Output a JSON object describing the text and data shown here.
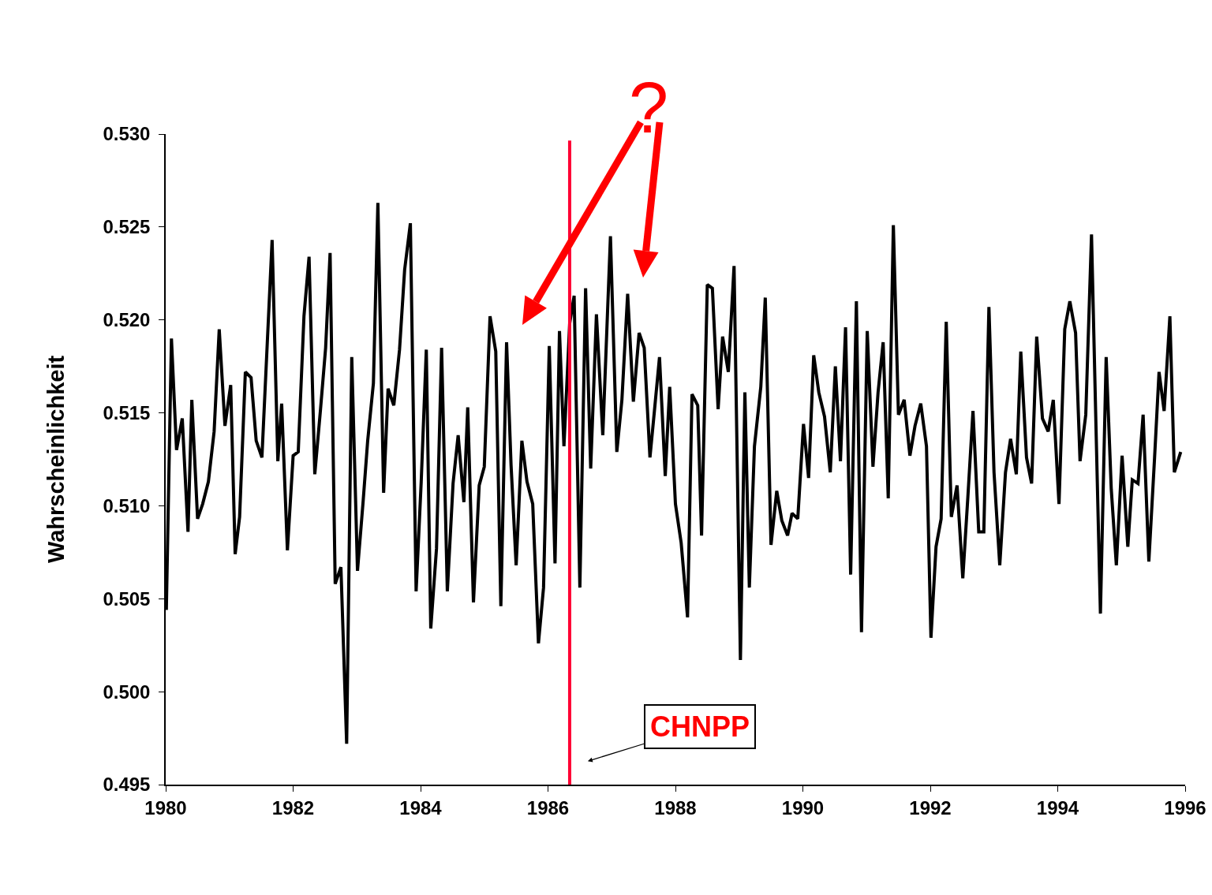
{
  "chart_data": {
    "type": "line",
    "ylabel": "Wahrscheinlichkeit",
    "grid": false,
    "marker": "none",
    "line_style": "solid",
    "xlim": [
      1980,
      1996
    ],
    "xticks": [
      1980,
      1982,
      1984,
      1986,
      1988,
      1990,
      1992,
      1994,
      1996
    ],
    "ylim": [
      0.495,
      0.53
    ],
    "yticks": [
      {
        "value": 0.495,
        "label": "0.495"
      },
      {
        "value": 0.5,
        "label": "0.500"
      },
      {
        "value": 0.505,
        "label": "0.505"
      },
      {
        "value": 0.51,
        "label": "0.510"
      },
      {
        "value": 0.515,
        "label": "0.515"
      },
      {
        "value": 0.52,
        "label": "0.520"
      },
      {
        "value": 0.525,
        "label": "0.525"
      },
      {
        "value": 0.53,
        "label": "0.530"
      }
    ],
    "annotations": [
      "?"
    ],
    "ref_lines": [
      {
        "axis": "x",
        "value": 1986.34,
        "label": "CHNPP",
        "color": "#ff0033"
      }
    ],
    "series": [
      {
        "color": "#000000",
        "x": [
          1980.01,
          1980.09,
          1980.17,
          1980.26,
          1980.35,
          1980.41,
          1980.5,
          1980.58,
          1980.67,
          1980.76,
          1980.84,
          1980.93,
          1981.02,
          1981.09,
          1981.16,
          1981.25,
          1981.34,
          1981.42,
          1981.51,
          1981.67,
          1981.76,
          1981.82,
          1981.91,
          1982.0,
          1982.08,
          1982.17,
          1982.25,
          1982.34,
          1982.43,
          1982.51,
          1982.58,
          1982.66,
          1982.75,
          1982.84,
          1982.92,
          1983.01,
          1983.1,
          1983.17,
          1983.26,
          1983.33,
          1983.42,
          1983.49,
          1983.58,
          1983.67,
          1983.75,
          1983.84,
          1983.93,
          1984.01,
          1984.09,
          1984.16,
          1984.25,
          1984.33,
          1984.42,
          1984.51,
          1984.59,
          1984.68,
          1984.74,
          1984.83,
          1984.92,
          1985.0,
          1985.09,
          1985.18,
          1985.26,
          1985.35,
          1985.42,
          1985.5,
          1985.59,
          1985.67,
          1985.76,
          1985.85,
          1985.93,
          1986.02,
          1986.11,
          1986.18,
          1986.25,
          1986.34,
          1986.41,
          1986.5,
          1986.59,
          1986.67,
          1986.76,
          1986.86,
          1986.98,
          1987.08,
          1987.16,
          1987.25,
          1987.34,
          1987.43,
          1987.51,
          1987.6,
          1987.67,
          1987.75,
          1987.84,
          1987.91,
          1988.0,
          1988.09,
          1988.19,
          1988.26,
          1988.35,
          1988.41,
          1988.5,
          1988.58,
          1988.67,
          1988.74,
          1988.83,
          1988.92,
          1989.02,
          1989.09,
          1989.16,
          1989.24,
          1989.34,
          1989.41,
          1989.5,
          1989.59,
          1989.67,
          1989.76,
          1989.83,
          1989.92,
          1990.01,
          1990.09,
          1990.17,
          1990.25,
          1990.34,
          1990.43,
          1990.51,
          1990.59,
          1990.67,
          1990.75,
          1990.84,
          1990.92,
          1991.01,
          1991.1,
          1991.18,
          1991.26,
          1991.34,
          1991.42,
          1991.5,
          1991.59,
          1991.68,
          1991.76,
          1991.85,
          1991.94,
          1992.01,
          1992.09,
          1992.17,
          1992.25,
          1992.33,
          1992.42,
          1992.51,
          1992.59,
          1992.67,
          1992.76,
          1992.84,
          1992.92,
          1993.0,
          1993.09,
          1993.18,
          1993.26,
          1993.35,
          1993.42,
          1993.51,
          1993.59,
          1993.67,
          1993.76,
          1993.85,
          1993.93,
          1994.02,
          1994.11,
          1994.19,
          1994.28,
          1994.35,
          1994.44,
          1994.53,
          1994.6,
          1994.67,
          1994.76,
          1994.84,
          1994.92,
          1995.01,
          1995.1,
          1995.17,
          1995.26,
          1995.34,
          1995.43,
          1995.52,
          1995.59,
          1995.67,
          1995.76,
          1995.83,
          1995.93
        ],
        "values": [
          0.5044,
          0.519,
          0.513,
          0.5147,
          0.5086,
          0.5157,
          0.5093,
          0.5101,
          0.5113,
          0.514,
          0.5195,
          0.5143,
          0.5165,
          0.5074,
          0.5094,
          0.5172,
          0.5169,
          0.5135,
          0.5126,
          0.5243,
          0.5124,
          0.5155,
          0.5076,
          0.5127,
          0.5129,
          0.5202,
          0.5234,
          0.5117,
          0.5152,
          0.5185,
          0.5236,
          0.5058,
          0.5067,
          0.4972,
          0.518,
          0.5065,
          0.5103,
          0.5135,
          0.5166,
          0.5263,
          0.5107,
          0.5163,
          0.5154,
          0.5184,
          0.5227,
          0.5252,
          0.5054,
          0.5113,
          0.5184,
          0.5034,
          0.5077,
          0.5185,
          0.5054,
          0.5112,
          0.5138,
          0.5102,
          0.5153,
          0.5048,
          0.5111,
          0.5121,
          0.5202,
          0.5183,
          0.5046,
          0.5188,
          0.5122,
          0.5068,
          0.5135,
          0.5113,
          0.5101,
          0.5026,
          0.5056,
          0.5186,
          0.5069,
          0.5194,
          0.5132,
          0.5198,
          0.5213,
          0.5056,
          0.5217,
          0.512,
          0.5203,
          0.5138,
          0.5245,
          0.5129,
          0.5157,
          0.5214,
          0.5156,
          0.5193,
          0.5185,
          0.5126,
          0.5151,
          0.518,
          0.5116,
          0.5164,
          0.5101,
          0.508,
          0.504,
          0.516,
          0.5154,
          0.5084,
          0.5219,
          0.5217,
          0.5152,
          0.5191,
          0.5172,
          0.5229,
          0.5017,
          0.5161,
          0.5056,
          0.5132,
          0.5164,
          0.5212,
          0.5079,
          0.5108,
          0.5092,
          0.5084,
          0.5096,
          0.5093,
          0.5144,
          0.5115,
          0.5181,
          0.5161,
          0.5148,
          0.5118,
          0.5175,
          0.5124,
          0.5196,
          0.5063,
          0.521,
          0.5032,
          0.5194,
          0.5121,
          0.5161,
          0.5188,
          0.5104,
          0.5251,
          0.5149,
          0.5157,
          0.5127,
          0.5143,
          0.5155,
          0.5132,
          0.5029,
          0.5078,
          0.5093,
          0.5199,
          0.5094,
          0.5111,
          0.5061,
          0.5105,
          0.5151,
          0.5086,
          0.5086,
          0.5207,
          0.5118,
          0.5068,
          0.5118,
          0.5136,
          0.5117,
          0.5183,
          0.5126,
          0.5112,
          0.5191,
          0.5147,
          0.514,
          0.5157,
          0.5101,
          0.5195,
          0.521,
          0.5193,
          0.5124,
          0.5149,
          0.5246,
          0.5143,
          0.5042,
          0.518,
          0.5109,
          0.5068,
          0.5127,
          0.5078,
          0.5114,
          0.5112,
          0.5149,
          0.507,
          0.5126,
          0.5172,
          0.5151,
          0.5202,
          0.5118,
          0.5129
        ]
      }
    ]
  }
}
